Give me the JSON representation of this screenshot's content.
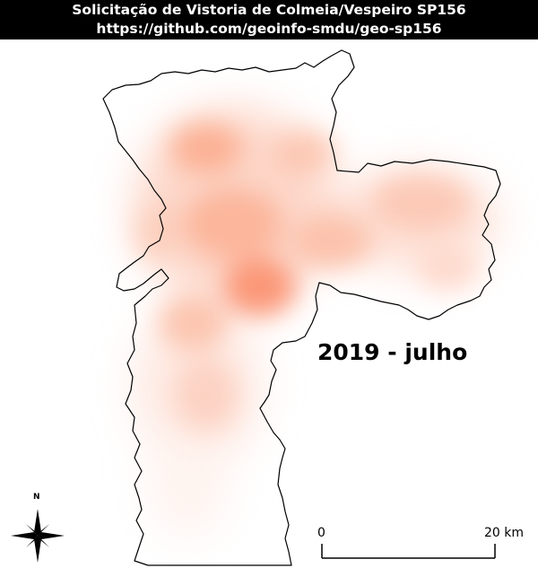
{
  "header": {
    "title": "Solicitação de Vistoria de Colmeia/Vespeiro SP156",
    "subtitle": "https://github.com/geoinfo-smdu/geo-sp156"
  },
  "map": {
    "period_label": "2019 - julho",
    "heat_color": "#fa7b55",
    "boundary_color": "#000000",
    "background": "#ffffff"
  },
  "scale_bar": {
    "start_label": "0",
    "end_label": "20 km"
  },
  "north_arrow": {
    "label": "N",
    "icon": "compass-rose-icon"
  }
}
